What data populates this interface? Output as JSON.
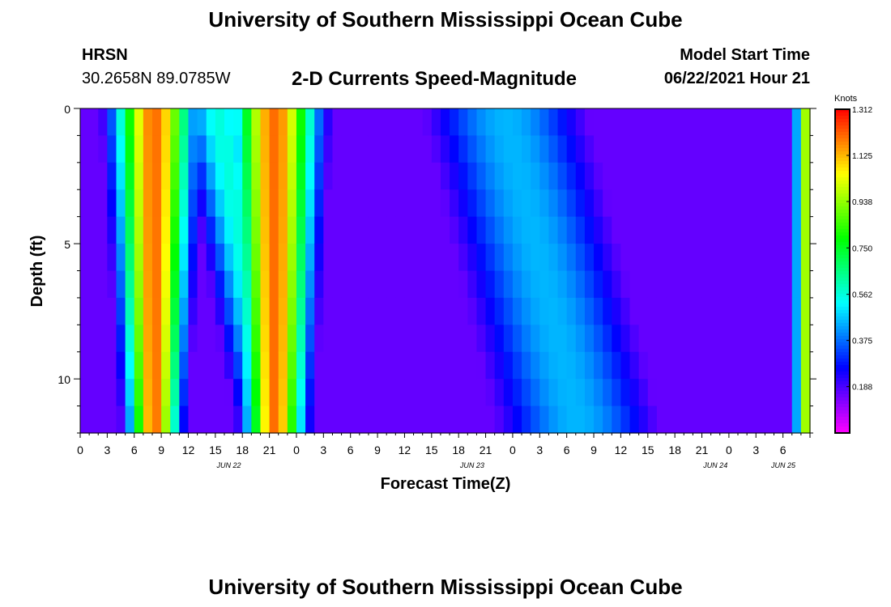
{
  "page": {
    "title_top": "University of Southern Mississippi Ocean Cube",
    "title_bottom": "University of Southern Mississippi Ocean Cube",
    "station": "HRSN",
    "location": "30.2658N  89.0785W",
    "plot_title": "2-D Currents Speed-Magnitude",
    "model_label": "Model Start Time",
    "model_value": "06/22/2021 Hour 21"
  },
  "chart_data": {
    "type": "heatmap",
    "title": "2-D Currents Speed-Magnitude",
    "xlabel": "Forecast Time(Z)",
    "ylabel": "Depth (ft)",
    "y_ticks": [
      "0",
      "5",
      "10"
    ],
    "y_range": [
      0,
      12
    ],
    "x_tick_labels": [
      "0",
      "3",
      "6",
      "9",
      "12",
      "15",
      "18",
      "21",
      "0",
      "3",
      "6",
      "9",
      "12",
      "15",
      "18",
      "21",
      "0",
      "3",
      "6",
      "9",
      "12",
      "15",
      "18",
      "21",
      "0",
      "3",
      "6"
    ],
    "date_labels": [
      {
        "text": "JUN 22",
        "tick_index": 4
      },
      {
        "text": "JUN 23",
        "tick_index": 13
      },
      {
        "text": "JUN 24",
        "tick_index": 22
      },
      {
        "text": "JUN 25",
        "tick_index": 28
      }
    ],
    "x_range_hours": [
      0,
      81
    ],
    "colorbar": {
      "unit": "Knots",
      "min": 0,
      "max": 1.312,
      "tick_labels": [
        "1.312",
        "1.125",
        "0.938",
        "0.750",
        "0.562",
        "0.375",
        "0.188"
      ],
      "tick_values": [
        1.312,
        1.125,
        0.938,
        0.75,
        0.562,
        0.375,
        0.188
      ]
    },
    "grid": false
  }
}
